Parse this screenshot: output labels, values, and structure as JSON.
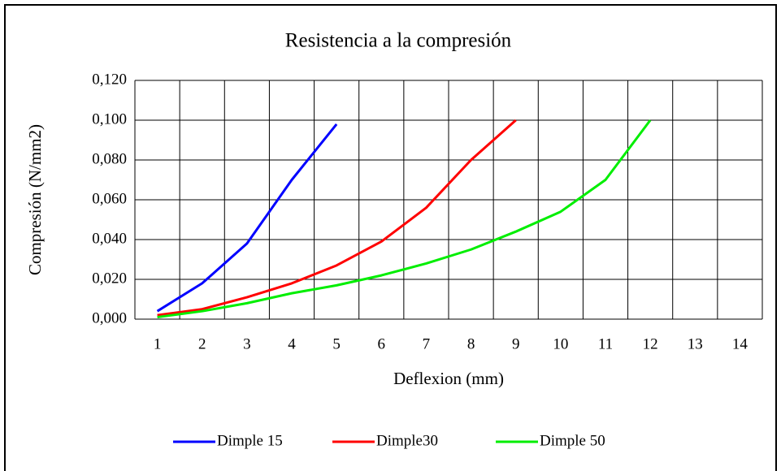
{
  "chart_data": {
    "type": "line",
    "title": "Resistencia a la compresión",
    "x_label": "Deflexion (mm)",
    "y_label": "Compresión (N/mm2)",
    "categories": [
      "1",
      "2",
      "3",
      "4",
      "5",
      "6",
      "7",
      "8",
      "9",
      "10",
      "11",
      "12",
      "13",
      "14"
    ],
    "series": [
      {
        "name": "Dimple 15",
        "color": "#0000ff",
        "values": [
          0.004,
          0.018,
          0.038,
          0.07,
          0.098,
          null,
          null,
          null,
          null,
          null,
          null,
          null,
          null,
          null
        ]
      },
      {
        "name": "Dimple30",
        "color": "#ff0000",
        "values": [
          0.002,
          0.005,
          0.011,
          0.018,
          0.027,
          0.039,
          0.056,
          0.08,
          0.1,
          null,
          null,
          null,
          null,
          null
        ]
      },
      {
        "name": "Dimple 50",
        "color": "#00ee00",
        "values": [
          0.001,
          0.004,
          0.008,
          0.013,
          0.017,
          0.022,
          0.028,
          0.035,
          0.044,
          0.054,
          0.07,
          0.1,
          null,
          null
        ]
      }
    ],
    "ylim": [
      0,
      0.12
    ],
    "yticks": [
      {
        "value": 0,
        "label": "0,000"
      },
      {
        "value": 0.02,
        "label": "0,020"
      },
      {
        "value": 0.04,
        "label": "0,040"
      },
      {
        "value": 0.06,
        "label": "0,060"
      },
      {
        "value": 0.08,
        "label": "0,080"
      },
      {
        "value": 0.1,
        "label": "0,100"
      },
      {
        "value": 0.12,
        "label": "0,120"
      }
    ],
    "grid": true,
    "legend": "bottom"
  }
}
